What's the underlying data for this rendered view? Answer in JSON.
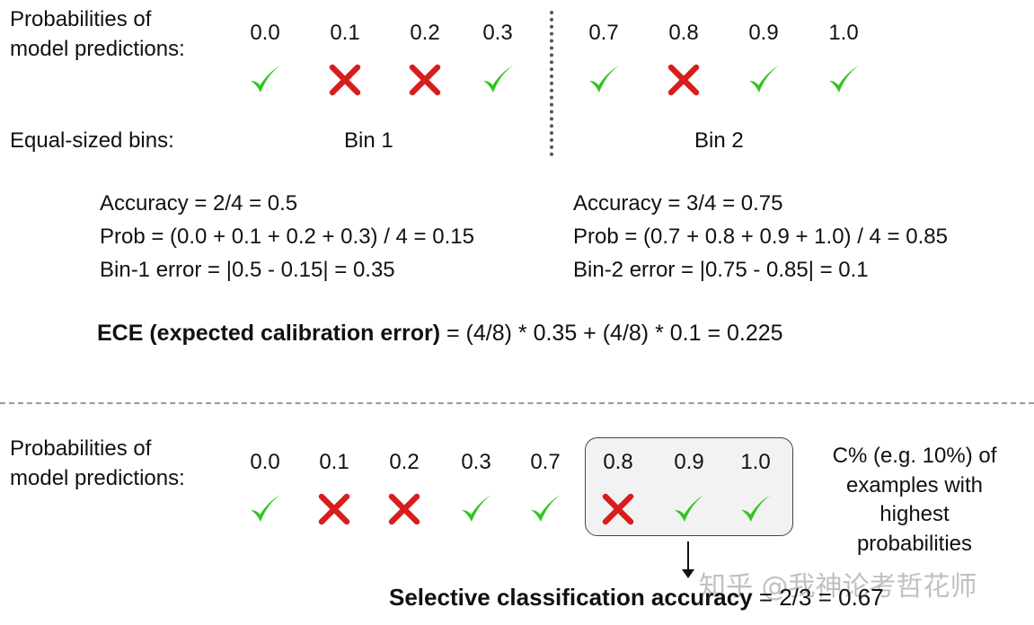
{
  "top": {
    "label": [
      "Probabilities of",
      "model predictions:"
    ],
    "items": [
      {
        "p": "0.0",
        "ok": true
      },
      {
        "p": "0.1",
        "ok": false
      },
      {
        "p": "0.2",
        "ok": false
      },
      {
        "p": "0.3",
        "ok": true
      },
      {
        "p": "0.7",
        "ok": true
      },
      {
        "p": "0.8",
        "ok": false
      },
      {
        "p": "0.9",
        "ok": true
      },
      {
        "p": "1.0",
        "ok": true
      }
    ],
    "bins_label": "Equal-sized bins:",
    "bin1": "Bin 1",
    "bin2": "Bin 2"
  },
  "calc": {
    "bin1": {
      "accuracy": "Accuracy = 2/4 = 0.5",
      "prob": "Prob = (0.0 + 0.1 + 0.2 + 0.3) / 4 = 0.15",
      "error": "Bin-1 error = |0.5 - 0.15| = 0.35"
    },
    "bin2": {
      "accuracy": "Accuracy = 3/4 = 0.75",
      "prob": "Prob = (0.7 + 0.8 + 0.9 + 1.0) / 4 = 0.85",
      "error": "Bin-2 error = |0.75 - 0.85| = 0.1"
    },
    "ece_bold": "ECE (expected calibration error)",
    "ece_rest": " = (4/8) * 0.35 + (4/8) * 0.1 = 0.225"
  },
  "bottom": {
    "label": [
      "Probabilities of",
      "model predictions:"
    ],
    "items": [
      {
        "p": "0.0",
        "ok": true
      },
      {
        "p": "0.1",
        "ok": false
      },
      {
        "p": "0.2",
        "ok": false
      },
      {
        "p": "0.3",
        "ok": true
      },
      {
        "p": "0.7",
        "ok": true
      },
      {
        "p": "0.8",
        "ok": false
      },
      {
        "p": "0.9",
        "ok": true
      },
      {
        "p": "1.0",
        "ok": true
      }
    ],
    "c_text": [
      "C% (e.g. 10%) of",
      "examples with",
      "highest",
      "probabilities"
    ],
    "sca_bold": "Selective classification accuracy",
    "sca_rest": " = 2/3 = 0.67"
  },
  "watermark": "知乎 @我神论考哲花师",
  "colors": {
    "check": "#2fc51e",
    "cross": "#d81d1d"
  },
  "icons": {
    "correct": "check-icon",
    "wrong": "cross-icon"
  }
}
